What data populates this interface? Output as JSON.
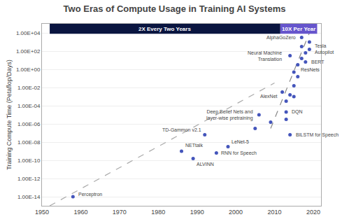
{
  "chart_data": {
    "type": "scatter",
    "title": "Two Eras of Compute Usage in Training AI Systems",
    "ylabel": "Training Compute Time (Petaflop/Days)",
    "xlim": [
      1950,
      2022
    ],
    "xticks": [
      1950,
      1960,
      1970,
      1980,
      1990,
      2000,
      2010,
      2020
    ],
    "ylim": [
      -15,
      5.0
    ],
    "yticks": [
      {
        "value": -14,
        "label": "1.00E-14"
      },
      {
        "value": -12,
        "label": "1.00E-12"
      },
      {
        "value": -10,
        "label": "1.00E-10"
      },
      {
        "value": -8,
        "label": "1.00E-08"
      },
      {
        "value": -6,
        "label": "1.00E-06"
      },
      {
        "value": -4,
        "label": "1.00E-04"
      },
      {
        "value": -2,
        "label": "1.00E-02"
      },
      {
        "value": 0,
        "label": "1.00E+00"
      },
      {
        "value": 2,
        "label": "1.00E+02"
      },
      {
        "value": 4,
        "label": "1.00E+04"
      }
    ],
    "grid": "y",
    "series": [
      {
        "type": "line",
        "line_style": "dashed",
        "color": "#aaaaaa",
        "x": [
          1952,
          2010
        ],
        "values": [
          -15.0,
          -1.5
        ]
      },
      {
        "type": "line",
        "line_style": "dashed",
        "color": "#888888",
        "x": [
          2009,
          2019
        ],
        "values": [
          -6.5,
          4.0
        ]
      },
      {
        "type": "scatter",
        "marker": "circle",
        "color": "#4455bb",
        "x": [
          1958,
          1986,
          1989,
          1992,
          1998,
          1995,
          2006,
          2013,
          2012,
          2014,
          2015,
          2018,
          2017,
          2019,
          2014,
          2013,
          2014,
          2015,
          2016,
          2016,
          2017,
          2017,
          2018,
          2019,
          2015,
          2013,
          2009,
          2005
        ],
        "values": [
          -14.0,
          -9.0,
          -9.8,
          -7.2,
          -8.5,
          -9.2,
          -5.0,
          -4.7,
          -2.5,
          1.5,
          -0.3,
          0.8,
          3.5,
          2.2,
          -7.2,
          -3.5,
          -2.8,
          -1.8,
          -0.8,
          0.5,
          1.2,
          2.5,
          1.8,
          3.0,
          -3.0,
          -5.5,
          -5.8,
          -6.5
        ]
      }
    ],
    "annotations": [
      {
        "text": "Perceptron",
        "x": 1958,
        "y": -14.0
      },
      {
        "text": "NETtalk",
        "x": 1986,
        "y": -9.0
      },
      {
        "text": "ALVINN",
        "x": 1989,
        "y": -9.8
      },
      {
        "text": "TD-Gammon v2.1",
        "x": 1992,
        "y": -7.2
      },
      {
        "text": "LeNet-5",
        "x": 1998,
        "y": -8.5
      },
      {
        "text": "RNN for Speech",
        "x": 1995,
        "y": -9.2
      },
      {
        "text": "Deep Belief Nets and\nlayer-wise pretraining",
        "x": 2006,
        "y": -5.0
      },
      {
        "text": "DQN",
        "x": 2013,
        "y": -4.7
      },
      {
        "text": "AlexNet",
        "x": 2012,
        "y": -2.5
      },
      {
        "text": "Neural Machine\nTranslation",
        "x": 2014,
        "y": 1.5
      },
      {
        "text": "ResNets",
        "x": 2015,
        "y": -0.3
      },
      {
        "text": "BERT",
        "x": 2018,
        "y": 0.8
      },
      {
        "text": "AlphaGoZero",
        "x": 2017,
        "y": 3.5
      },
      {
        "text": "Tesla\nAutopilot",
        "x": 2019,
        "y": 2.2
      },
      {
        "text": "BILSTM for Speech",
        "x": 2014,
        "y": -7.2
      }
    ],
    "eras": [
      {
        "label": "2X Every Two Years",
        "start": 1952,
        "end": 2011.5,
        "color": "#0a1540",
        "text_color": "#ffffff"
      },
      {
        "label": "10X Per Year",
        "start": 2011.5,
        "end": 2021,
        "color": "#6655cc",
        "text_color": "#ffffff"
      }
    ]
  }
}
